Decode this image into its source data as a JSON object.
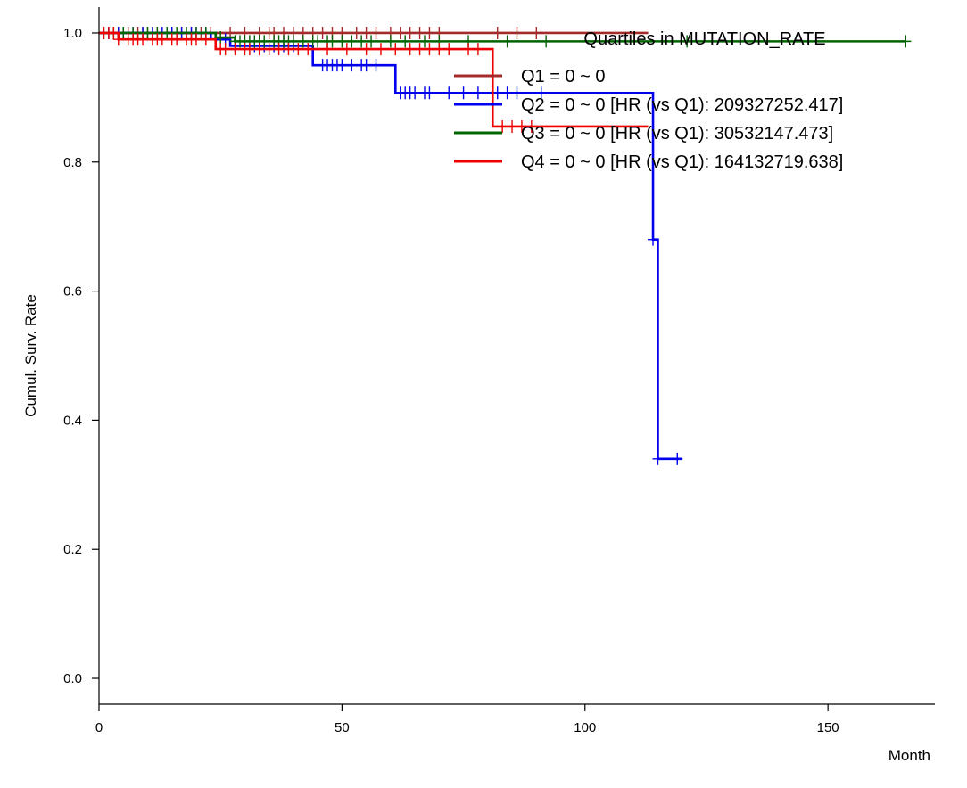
{
  "chart_data": {
    "type": "line",
    "subtype": "kaplan-meier",
    "xlabel": "Month",
    "ylabel": "Cumul. Surv. Rate",
    "xlim": [
      0,
      172
    ],
    "ylim": [
      -0.04,
      1.04
    ],
    "xticks": [
      0,
      50,
      100,
      150
    ],
    "yticks": [
      0.0,
      0.2,
      0.4,
      0.6,
      0.8,
      1.0
    ],
    "xtick_labels": [
      "0",
      "50",
      "100",
      "150"
    ],
    "ytick_labels": [
      "0.0",
      "0.2",
      "0.4",
      "0.6",
      "0.8",
      "1.0"
    ],
    "grid": false,
    "legend": {
      "title": "Quartiles in MUTATION_RATE",
      "placement": "top-right"
    },
    "series": [
      {
        "name": "Q1 = 0 ~ 0",
        "color": "#a52a2a",
        "steps": [
          [
            0,
            1.0
          ],
          [
            113,
            1.0
          ]
        ],
        "censored": [
          1,
          2,
          3,
          4,
          5,
          6,
          8,
          9,
          10,
          12,
          14,
          15,
          17,
          19,
          21,
          23,
          27,
          30,
          33,
          35,
          36,
          38,
          40,
          42,
          44,
          46,
          48,
          50,
          53,
          55,
          57,
          60,
          62,
          64,
          66,
          68,
          70,
          82,
          86,
          90
        ]
      },
      {
        "name": "Q2 = 0 ~ 0 [HR (vs Q1): 209327252.417]",
        "color": "#0000ee",
        "steps": [
          [
            0,
            1.0
          ],
          [
            2,
            1.0
          ],
          [
            23,
            0.99
          ],
          [
            27,
            0.98
          ],
          [
            44,
            0.95
          ],
          [
            61,
            0.907
          ],
          [
            114,
            0.68
          ],
          [
            115,
            0.34
          ],
          [
            120,
            0.34
          ]
        ],
        "censored": [
          2,
          4,
          5,
          7,
          9,
          11,
          13,
          15,
          17,
          19,
          20,
          22,
          26,
          28,
          30,
          32,
          34,
          36,
          38,
          40,
          46,
          47,
          48,
          49,
          50,
          52,
          54,
          55,
          57,
          62,
          63,
          64,
          65,
          67,
          68,
          72,
          75,
          78,
          82,
          84,
          86,
          91,
          114,
          115,
          119
        ]
      },
      {
        "name": "Q3 = 0 ~ 0 [HR (vs Q1): 30532147.473]",
        "color": "#006400",
        "steps": [
          [
            0,
            1.0
          ],
          [
            22,
            1.0
          ],
          [
            24,
            0.993
          ],
          [
            28,
            0.987
          ],
          [
            166,
            0.987
          ]
        ],
        "censored": [
          3,
          5,
          7,
          10,
          12,
          14,
          16,
          18,
          20,
          22,
          25,
          28,
          29,
          30,
          31,
          32,
          33,
          34,
          36,
          37,
          38,
          39,
          40,
          42,
          44,
          45,
          47,
          48,
          50,
          52,
          54,
          56,
          60,
          63,
          67,
          70,
          76,
          84,
          92,
          121,
          166
        ]
      },
      {
        "name": "Q4 = 0 ~ 0 [HR (vs Q1): 164132719.638]",
        "color": "#ee0000",
        "steps": [
          [
            0,
            1.0
          ],
          [
            4,
            0.99
          ],
          [
            24,
            0.975
          ],
          [
            81,
            0.855
          ],
          [
            113,
            0.855
          ]
        ],
        "censored": [
          1,
          2,
          3,
          4,
          6,
          7,
          8,
          9,
          11,
          12,
          13,
          15,
          16,
          18,
          19,
          20,
          22,
          25,
          26,
          28,
          30,
          31,
          33,
          35,
          37,
          39,
          41,
          43,
          47,
          51,
          55,
          58,
          61,
          64,
          66,
          68,
          70,
          72,
          76,
          78,
          83,
          85,
          87,
          89
        ]
      }
    ]
  }
}
